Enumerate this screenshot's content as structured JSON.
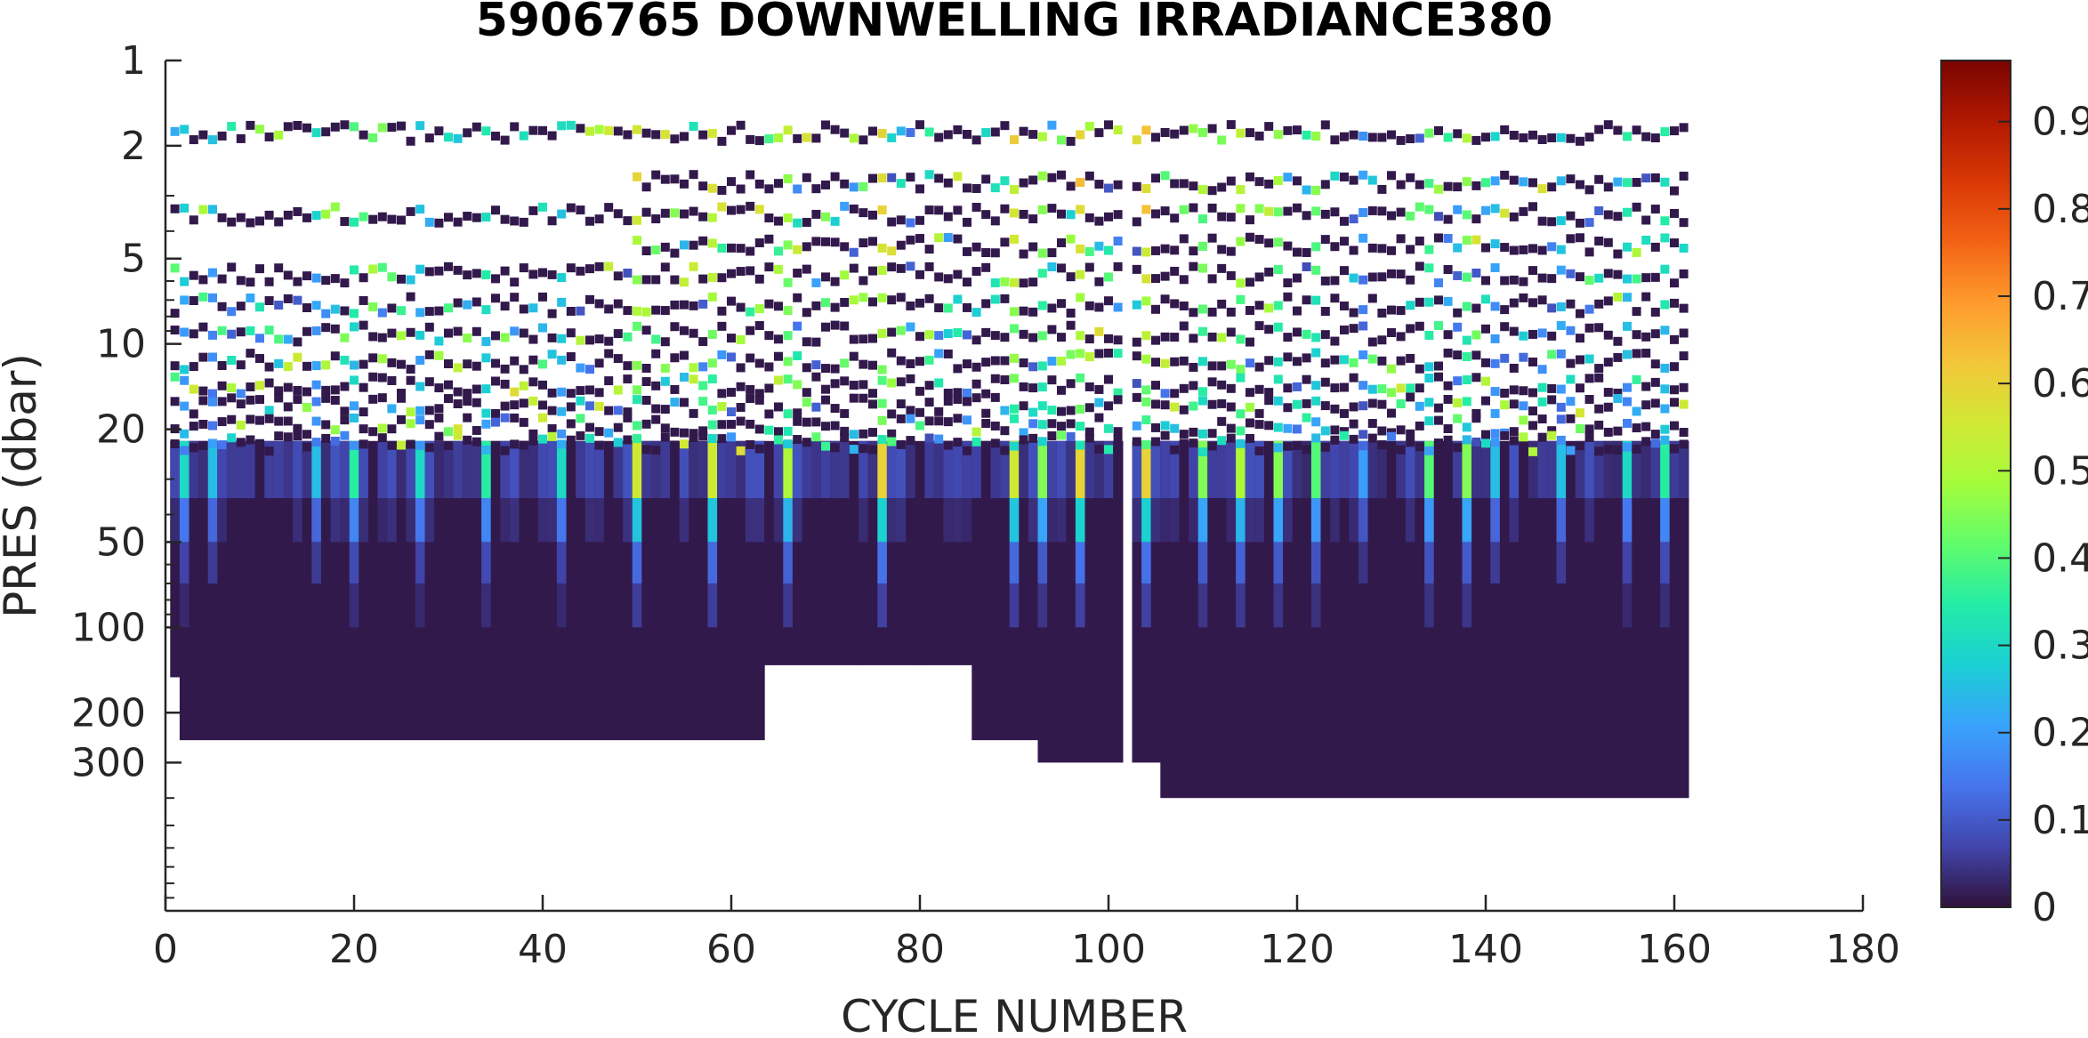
{
  "chart_data": {
    "type": "heatmap",
    "title": "5906765  DOWNWELLING IRRADIANCE380",
    "xlabel": "CYCLE NUMBER",
    "ylabel": "PRES (dbar)",
    "xlim": [
      0,
      180
    ],
    "ylim": [
      1,
      1000
    ],
    "y_scale": "log",
    "y_reversed": true,
    "x_ticks": [
      0,
      20,
      40,
      60,
      80,
      100,
      120,
      140,
      160,
      180
    ],
    "x_tick_labels": [
      "0",
      "20",
      "40",
      "60",
      "80",
      "100",
      "120",
      "140",
      "160",
      "180"
    ],
    "y_ticks": [
      1,
      2,
      5,
      10,
      20,
      50,
      100,
      200,
      300
    ],
    "y_tick_labels": [
      "1",
      "2",
      "5",
      "10",
      "20",
      "50",
      "100",
      "200",
      "300"
    ],
    "colorbar": {
      "colormap": "turbo",
      "range": [
        0,
        0.97
      ],
      "ticks": [
        0,
        0.1,
        0.2,
        0.3,
        0.4,
        0.5,
        0.6,
        0.7,
        0.8,
        0.9
      ],
      "tick_labels": [
        "0",
        "0.1",
        "0.2",
        "0.3",
        "0.4",
        "0.5",
        "0.6",
        "0.7",
        "0.8",
        "0.9"
      ],
      "colors": [
        "#30123b",
        "#4145ab",
        "#4675ed",
        "#39a2fc",
        "#1bcfd4",
        "#24eca6",
        "#61fc6c",
        "#a4fc3b",
        "#d1e834",
        "#f3c63a",
        "#fe9b2d",
        "#f36315",
        "#d93806",
        "#b11901",
        "#7a0402"
      ]
    },
    "cycles": {
      "first": 1,
      "last": 161
    },
    "missing_cycles": [
      102
    ],
    "shallow_levels_pres": [
      1.8,
      2.7,
      3.5,
      4.5,
      5.7,
      7.3,
      9.2,
      11.5,
      14,
      16.5,
      19.5,
      22.5
    ],
    "profile_max_pres": [
      {
        "from_cycle": 1,
        "to_cycle": 1,
        "max_pres": 150
      },
      {
        "from_cycle": 2,
        "to_cycle": 63,
        "max_pres": 250
      },
      {
        "from_cycle": 64,
        "to_cycle": 85,
        "max_pres": 136
      },
      {
        "from_cycle": 86,
        "to_cycle": 92,
        "max_pres": 250
      },
      {
        "from_cycle": 93,
        "to_cycle": 105,
        "max_pres": 300
      },
      {
        "from_cycle": 106,
        "to_cycle": 161,
        "max_pres": 400
      }
    ],
    "background_value": 0.01,
    "bright_profiles": [
      {
        "cycle": 2,
        "peak": 0.3
      },
      {
        "cycle": 5,
        "peak": 0.25
      },
      {
        "cycle": 16,
        "peak": 0.25
      },
      {
        "cycle": 20,
        "peak": 0.35
      },
      {
        "cycle": 27,
        "peak": 0.3
      },
      {
        "cycle": 34,
        "peak": 0.35
      },
      {
        "cycle": 42,
        "peak": 0.3
      },
      {
        "cycle": 50,
        "peak": 0.55
      },
      {
        "cycle": 58,
        "peak": 0.55
      },
      {
        "cycle": 66,
        "peak": 0.5
      },
      {
        "cycle": 76,
        "peak": 0.6
      },
      {
        "cycle": 90,
        "peak": 0.55
      },
      {
        "cycle": 93,
        "peak": 0.45
      },
      {
        "cycle": 97,
        "peak": 0.6
      },
      {
        "cycle": 104,
        "peak": 0.6
      },
      {
        "cycle": 110,
        "peak": 0.45
      },
      {
        "cycle": 114,
        "peak": 0.5
      },
      {
        "cycle": 118,
        "peak": 0.45
      },
      {
        "cycle": 122,
        "peak": 0.4
      },
      {
        "cycle": 127,
        "peak": 0.2
      },
      {
        "cycle": 134,
        "peak": 0.4
      },
      {
        "cycle": 138,
        "peak": 0.45
      },
      {
        "cycle": 141,
        "peak": 0.25
      },
      {
        "cycle": 148,
        "peak": 0.25
      },
      {
        "cycle": 155,
        "peak": 0.3
      },
      {
        "cycle": 159,
        "peak": 0.35
      }
    ]
  }
}
